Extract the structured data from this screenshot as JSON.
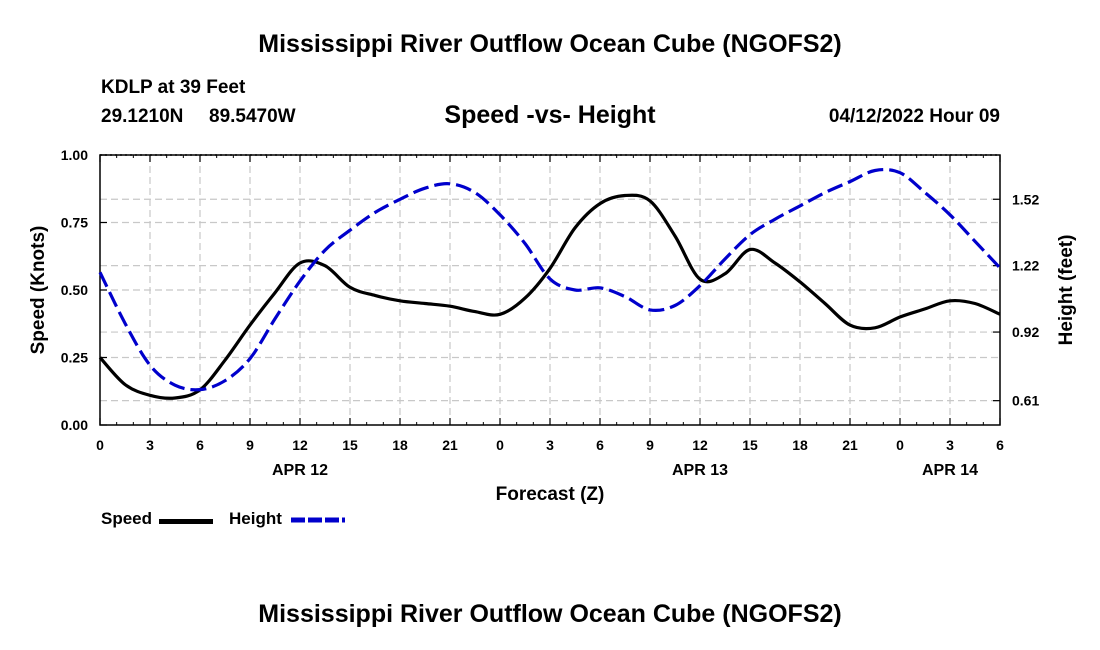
{
  "page": {
    "top_title": "Mississippi River Outflow Ocean Cube (NGOFS2)",
    "bottom_title": "Mississippi River Outflow Ocean Cube (NGOFS2)",
    "station": "KDLP at 39 Feet",
    "lat": "29.1210N",
    "lon": "89.5470W",
    "datetime": "04/12/2022 Hour 09"
  },
  "chart_data": {
    "type": "line",
    "title": "Speed -vs- Height",
    "xlabel": "Forecast (Z)",
    "ylabel_left": "Speed (Knots)",
    "ylabel_right": "Height (feet)",
    "x_hours": [
      0,
      1.5,
      3,
      4.5,
      6,
      7.5,
      9,
      10.5,
      12,
      13.5,
      15,
      16.5,
      18,
      19.5,
      21,
      22.5,
      24,
      25.5,
      27,
      28.5,
      30,
      31.5,
      33,
      34.5,
      36,
      37.5,
      39,
      40.5,
      42,
      43.5,
      45,
      46.5,
      48,
      49.5,
      51,
      52.5,
      54
    ],
    "x_ticks": [
      0,
      3,
      6,
      9,
      12,
      15,
      18,
      21,
      24,
      27,
      30,
      33,
      36,
      39,
      42,
      45,
      48,
      51,
      54
    ],
    "x_tick_labels": [
      "0",
      "3",
      "6",
      "9",
      "12",
      "15",
      "18",
      "21",
      "0",
      "3",
      "6",
      "9",
      "12",
      "15",
      "18",
      "21",
      "0",
      "3",
      "6"
    ],
    "date_labels": [
      {
        "hour": 12,
        "text": "APR 12"
      },
      {
        "hour": 36,
        "text": "APR 13"
      },
      {
        "hour": 51,
        "text": "APR 14"
      }
    ],
    "xlim": [
      0,
      54
    ],
    "ylim_left": [
      0,
      1
    ],
    "y_ticks_left": [
      0,
      0.25,
      0.5,
      0.75,
      1.0
    ],
    "y_tick_labels_left": [
      "0.00",
      "0.25",
      "0.50",
      "0.75",
      "1.00"
    ],
    "ylim_right": [
      0.5,
      1.72
    ],
    "y_ticks_right": [
      0.61,
      0.92,
      1.22,
      1.52
    ],
    "y_tick_labels_right": [
      "0.61",
      "0.92",
      "1.22",
      "1.52"
    ],
    "grid": true,
    "series": [
      {
        "name": "Speed",
        "axis": "left",
        "color": "#000000",
        "dash": "solid",
        "values": [
          0.25,
          0.15,
          0.11,
          0.1,
          0.13,
          0.24,
          0.37,
          0.49,
          0.6,
          0.59,
          0.51,
          0.48,
          0.46,
          0.45,
          0.44,
          0.42,
          0.41,
          0.47,
          0.58,
          0.73,
          0.82,
          0.85,
          0.83,
          0.7,
          0.54,
          0.56,
          0.65,
          0.6,
          0.53,
          0.45,
          0.37,
          0.36,
          0.4,
          0.43,
          0.46,
          0.45,
          0.41
        ]
      },
      {
        "name": "Height",
        "axis": "right",
        "color": "#0000cc",
        "dash": "dashed",
        "values": [
          1.19,
          0.96,
          0.77,
          0.68,
          0.66,
          0.7,
          0.8,
          0.98,
          1.15,
          1.29,
          1.38,
          1.46,
          1.52,
          1.57,
          1.59,
          1.55,
          1.45,
          1.32,
          1.16,
          1.11,
          1.12,
          1.08,
          1.02,
          1.04,
          1.13,
          1.25,
          1.36,
          1.43,
          1.49,
          1.55,
          1.6,
          1.65,
          1.64,
          1.55,
          1.45,
          1.33,
          1.21
        ]
      }
    ],
    "legend": [
      {
        "label": "Speed",
        "color": "#000000",
        "dash": "solid"
      },
      {
        "label": "Height",
        "color": "#0000cc",
        "dash": "dashed"
      }
    ]
  }
}
